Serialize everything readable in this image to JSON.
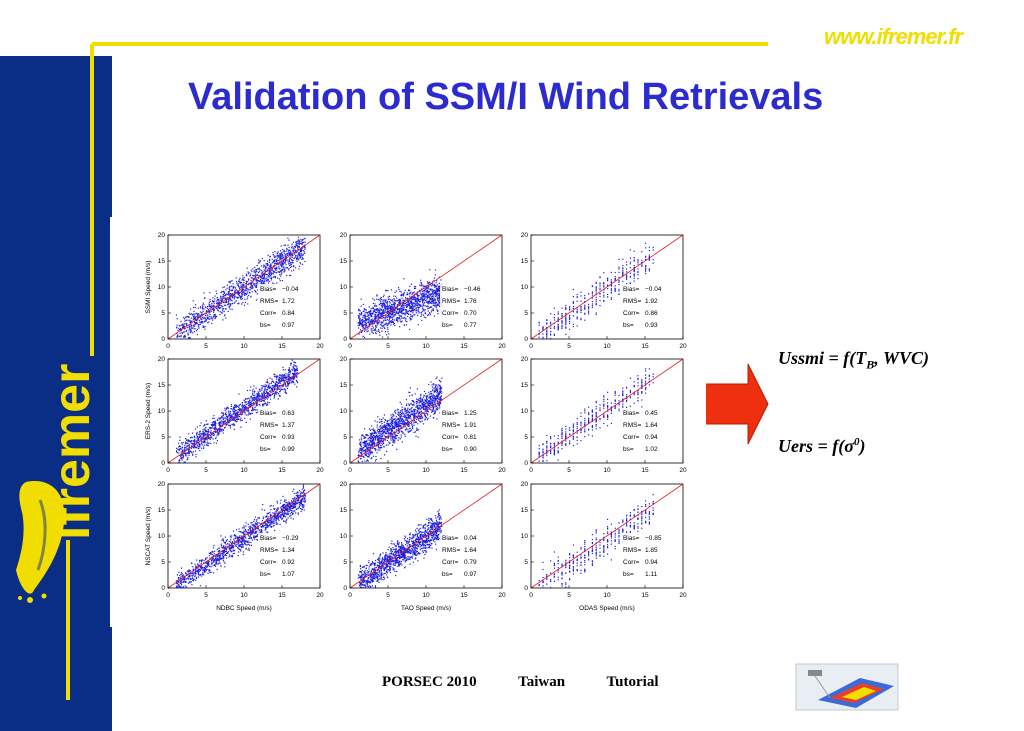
{
  "header": {
    "url": "www.ifremer.fr",
    "title": "Validation of SSM/I Wind Retrievals",
    "logo_text": "ifremer"
  },
  "colors": {
    "sidebar": "#0a2e86",
    "accent_yellow": "#f2dd00",
    "title_blue": "#2b2bd0",
    "points": "#1f1fe0",
    "fit_line": "#e02020",
    "arrow": "#ee3010"
  },
  "equations": {
    "ussmi": {
      "prefix": "Ussmi = f(T",
      "sub": "B",
      "suffix": ", WVC)"
    },
    "uers": {
      "prefix": "Uers = f(",
      "symbol": "σ",
      "sup": "0",
      "suffix": ")"
    }
  },
  "footer": {
    "event": "PORSEC 2010",
    "location": "Taiwan",
    "type": "Tutorial"
  },
  "chart_data": {
    "type": "scatter",
    "grid": "3x3",
    "xlim": [
      0,
      20
    ],
    "ylim": [
      0,
      20
    ],
    "ticks": [
      0,
      5,
      10,
      15,
      20
    ],
    "reference_line": "1:1",
    "columns": [
      {
        "xlabel": "NDBC Speed (m/s)"
      },
      {
        "xlabel": "TAO Speed (m/s)"
      },
      {
        "xlabel": "ODAS Speed (m/s)"
      }
    ],
    "rows": [
      {
        "ylabel": "SSMI Speed (m/s)"
      },
      {
        "ylabel": "ERS-2 Speed (m/s)"
      },
      {
        "ylabel": "NSCAT Speed (m/s)"
      }
    ],
    "stat_labels": {
      "bias": "Bias=",
      "rms": "RMS=",
      "corr": "Corr=",
      "bs": "bs="
    },
    "panels": [
      {
        "row": 0,
        "col": 0,
        "bias": "−0.04",
        "rms": "1.72",
        "corr": "0.84",
        "bs": "0.97"
      },
      {
        "row": 0,
        "col": 1,
        "bias": "−0.46",
        "rms": "1.76",
        "corr": "0.70",
        "bs": "0.77"
      },
      {
        "row": 0,
        "col": 2,
        "bias": "−0.04",
        "rms": "1.92",
        "corr": "0.86",
        "bs": "0.93"
      },
      {
        "row": 1,
        "col": 0,
        "bias": "0.63",
        "rms": "1.37",
        "corr": "0.93",
        "bs": "0.99"
      },
      {
        "row": 1,
        "col": 1,
        "bias": "1.25",
        "rms": "1.91",
        "corr": "0.81",
        "bs": "0.90"
      },
      {
        "row": 1,
        "col": 2,
        "bias": "0.45",
        "rms": "1.64",
        "corr": "0.94",
        "bs": "1.02"
      },
      {
        "row": 2,
        "col": 0,
        "bias": "−0.29",
        "rms": "1.34",
        "corr": "0.92",
        "bs": "1.07"
      },
      {
        "row": 2,
        "col": 1,
        "bias": "0.04",
        "rms": "1.64",
        "corr": "0.79",
        "bs": "0.97"
      },
      {
        "row": 2,
        "col": 2,
        "bias": "−0.85",
        "rms": "1.85",
        "corr": "0.94",
        "bs": "1.11"
      }
    ]
  }
}
